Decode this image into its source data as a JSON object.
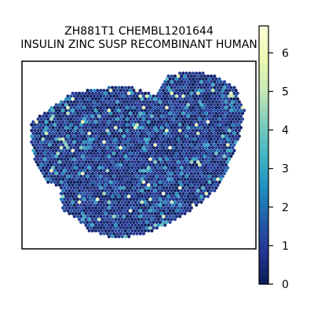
{
  "chart_data": {
    "type": "heatmap",
    "title_lines": [
      "ZH881T1 CHEMBL1201644",
      "INSULIN ZINC SUSP RECOMBINANT HUMAN"
    ],
    "xlabel": "",
    "ylabel": "",
    "grid": false,
    "legend": "none",
    "colorbar": {
      "orientation": "vertical",
      "placement": "right",
      "range": [
        0,
        6.7
      ],
      "ticks": [
        "0",
        "1",
        "2",
        "3",
        "4",
        "5",
        "6"
      ],
      "tick_values": [
        0,
        1,
        2,
        3,
        4,
        5,
        6
      ],
      "colormap": "YlGnBu",
      "stops": [
        "#081d58",
        "#253494",
        "#225ea8",
        "#1d91c0",
        "#41b6c4",
        "#7fcdbb",
        "#c7e9b4",
        "#edf8b1",
        "#ffffd9"
      ]
    },
    "spot_value_distribution": {
      "description_values": "Hexagonal spatial spots; most values near 0-1, scattered higher values up to ~6",
      "typical_range": [
        0,
        2
      ],
      "max": 6.7
    }
  }
}
